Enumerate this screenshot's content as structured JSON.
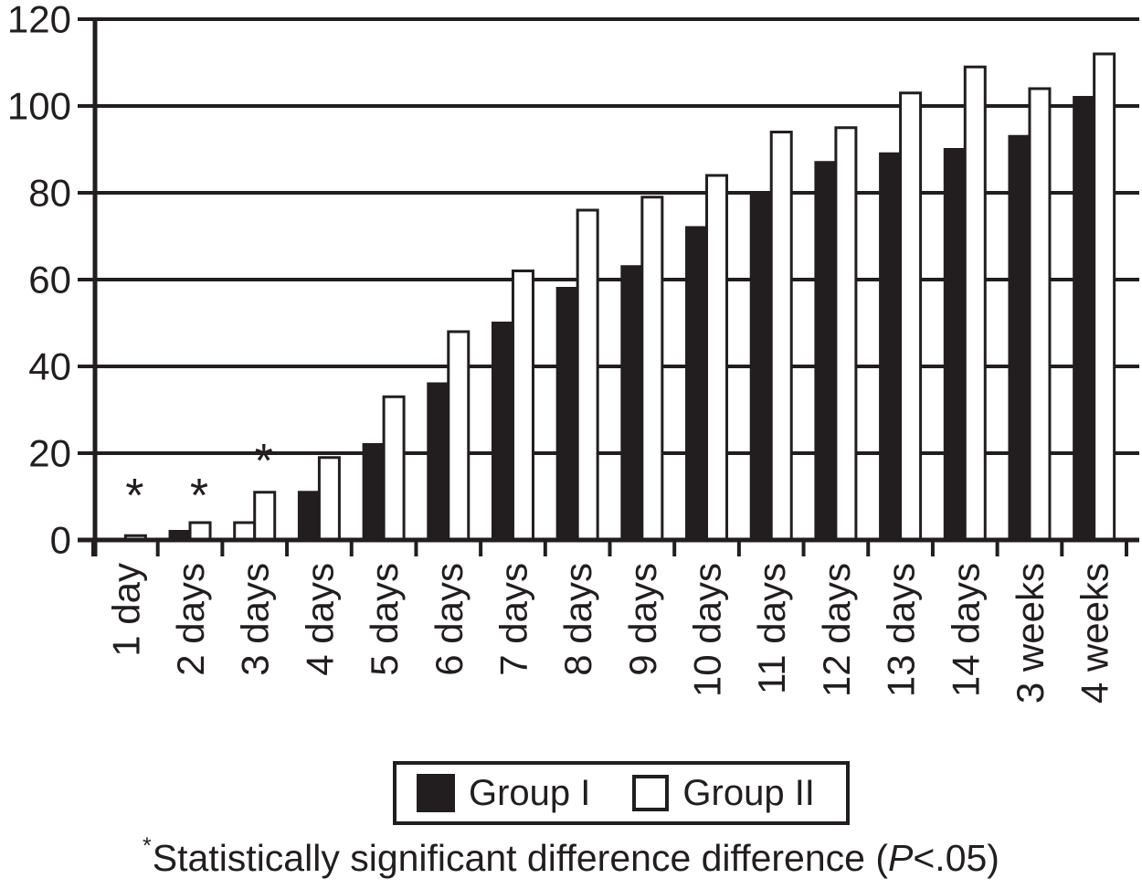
{
  "figure": {
    "background": "#ffffff",
    "ink": "#221e1f"
  },
  "chart_data": {
    "type": "bar",
    "title": "",
    "xlabel": "",
    "ylabel": "",
    "categories": [
      "1 day",
      "2 days",
      "3 days",
      "4 days",
      "5 days",
      "6 days",
      "7 days",
      "8 days",
      "9 days",
      "10 days",
      "11 days",
      "12 days",
      "13 days",
      "14 days",
      "3 weeks",
      "4 weeks"
    ],
    "series": [
      {
        "name": "Group I",
        "fill": "#221e1f",
        "values": [
          0,
          2,
          4,
          11,
          22,
          36,
          50,
          58,
          63,
          72,
          80,
          87,
          89,
          90,
          93,
          102
        ],
        "unfilled_value_indices": [
          2
        ]
      },
      {
        "name": "Group II",
        "fill": "#ffffff",
        "values": [
          1,
          4,
          11,
          19,
          33,
          48,
          62,
          76,
          79,
          84,
          94,
          95,
          103,
          109,
          104,
          112
        ]
      }
    ],
    "ylim": [
      0,
      120
    ],
    "yticks": [
      0,
      20,
      40,
      60,
      80,
      100,
      120
    ],
    "grid": "horizontal",
    "legend_position": "bottom-center-boxed",
    "annotations": [
      {
        "symbol": "*",
        "category": "1 day",
        "value": 12
      },
      {
        "symbol": "*",
        "category": "2 days",
        "value": 12
      },
      {
        "symbol": "*",
        "category": "3 days",
        "value": 20
      }
    ]
  },
  "footnote": {
    "marker": "*",
    "text": "Statistically significant difference difference (",
    "p_italic": "P",
    "text_end": "<.05)"
  }
}
